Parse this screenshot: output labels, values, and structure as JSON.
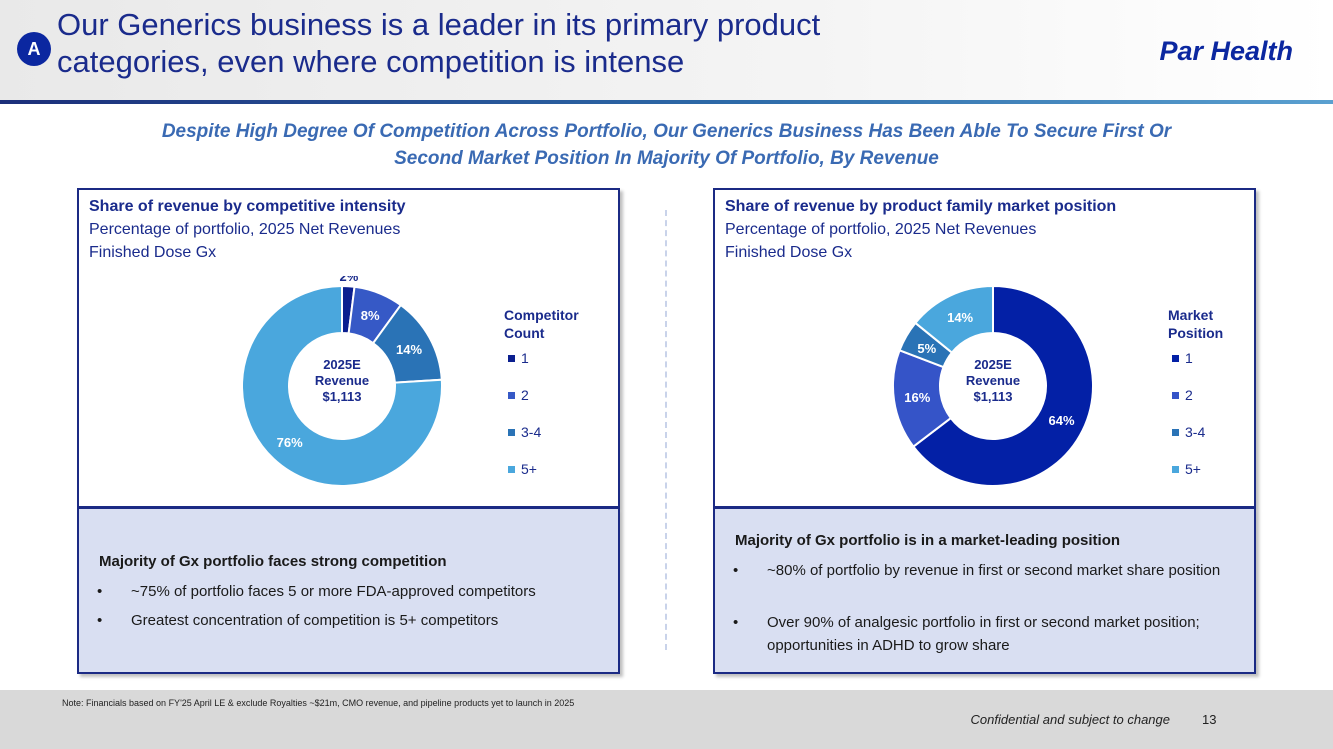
{
  "header": {
    "badge": "A",
    "title_line1": "Our Generics business is a leader in its primary product",
    "title_line2": "categories, even where competition is intense",
    "brand": "Par Health"
  },
  "subtitle_line1": "Despite High Degree Of Competition Across Portfolio, Our Generics Business Has Been Able To Secure First Or",
  "subtitle_line2": "Second Market Position In Majority Of Portfolio, By Revenue",
  "left_panel": {
    "title": "Share of revenue by competitive intensity",
    "subtitle1": "Percentage of portfolio, 2025 Net Revenues",
    "subtitle2": "Finished Dose Gx",
    "center_line1": "2025E",
    "center_line2": "Revenue",
    "center_line3": "$1,113",
    "legend_title_line1": "Competitor",
    "legend_title_line2": "Count"
  },
  "right_panel": {
    "title": "Share of revenue by product family market position",
    "subtitle1": "Percentage of portfolio, 2025 Net Revenues",
    "subtitle2": "Finished Dose Gx",
    "center_line1": "2025E",
    "center_line2": "Revenue",
    "center_line3": "$1,113",
    "legend_title_line1": "Market",
    "legend_title_line2": "Position"
  },
  "chart_data": [
    {
      "type": "pie",
      "title": "Share of revenue by competitive intensity",
      "legend_title": "Competitor Count",
      "categories": [
        "1",
        "2",
        "3-4",
        "5+"
      ],
      "values": [
        2,
        8,
        14,
        76
      ],
      "labels": [
        "2%",
        "8%",
        "14%",
        "76%"
      ],
      "colors": [
        "#0b1f8f",
        "#3659c6",
        "#2a73b6",
        "#4aa7dd"
      ]
    },
    {
      "type": "pie",
      "title": "Share of revenue by product family market position",
      "legend_title": "Market Position",
      "categories": [
        "1",
        "2",
        "3-4",
        "5+"
      ],
      "values": [
        64,
        16,
        5,
        14
      ],
      "labels": [
        "64%",
        "16%",
        "5%",
        "14%"
      ],
      "colors": [
        "#0320a6",
        "#3554c8",
        "#2a73b6",
        "#4aa7dd"
      ]
    }
  ],
  "left_callout": {
    "heading": "Majority of Gx portfolio faces strong competition",
    "bullet_symbol": "•",
    "bullets": [
      "~75% of portfolio faces 5 or more FDA-approved competitors",
      "Greatest concentration of competition is 5+ competitors"
    ]
  },
  "right_callout": {
    "heading": "Majority of Gx portfolio is in a market-leading position",
    "bullet_symbol": "•",
    "bullets": [
      "~80% of portfolio by revenue in first or second market share position",
      "Over 90% of analgesic portfolio in first or second market position; opportunities in ADHD to grow share"
    ]
  },
  "footer": {
    "note": "Note: Financials based on FY'25 April LE & exclude Royalties ~$21m, CMO revenue, and pipeline products yet to launch in 2025",
    "confidential": "Confidential and subject to change",
    "page_number": "13"
  }
}
